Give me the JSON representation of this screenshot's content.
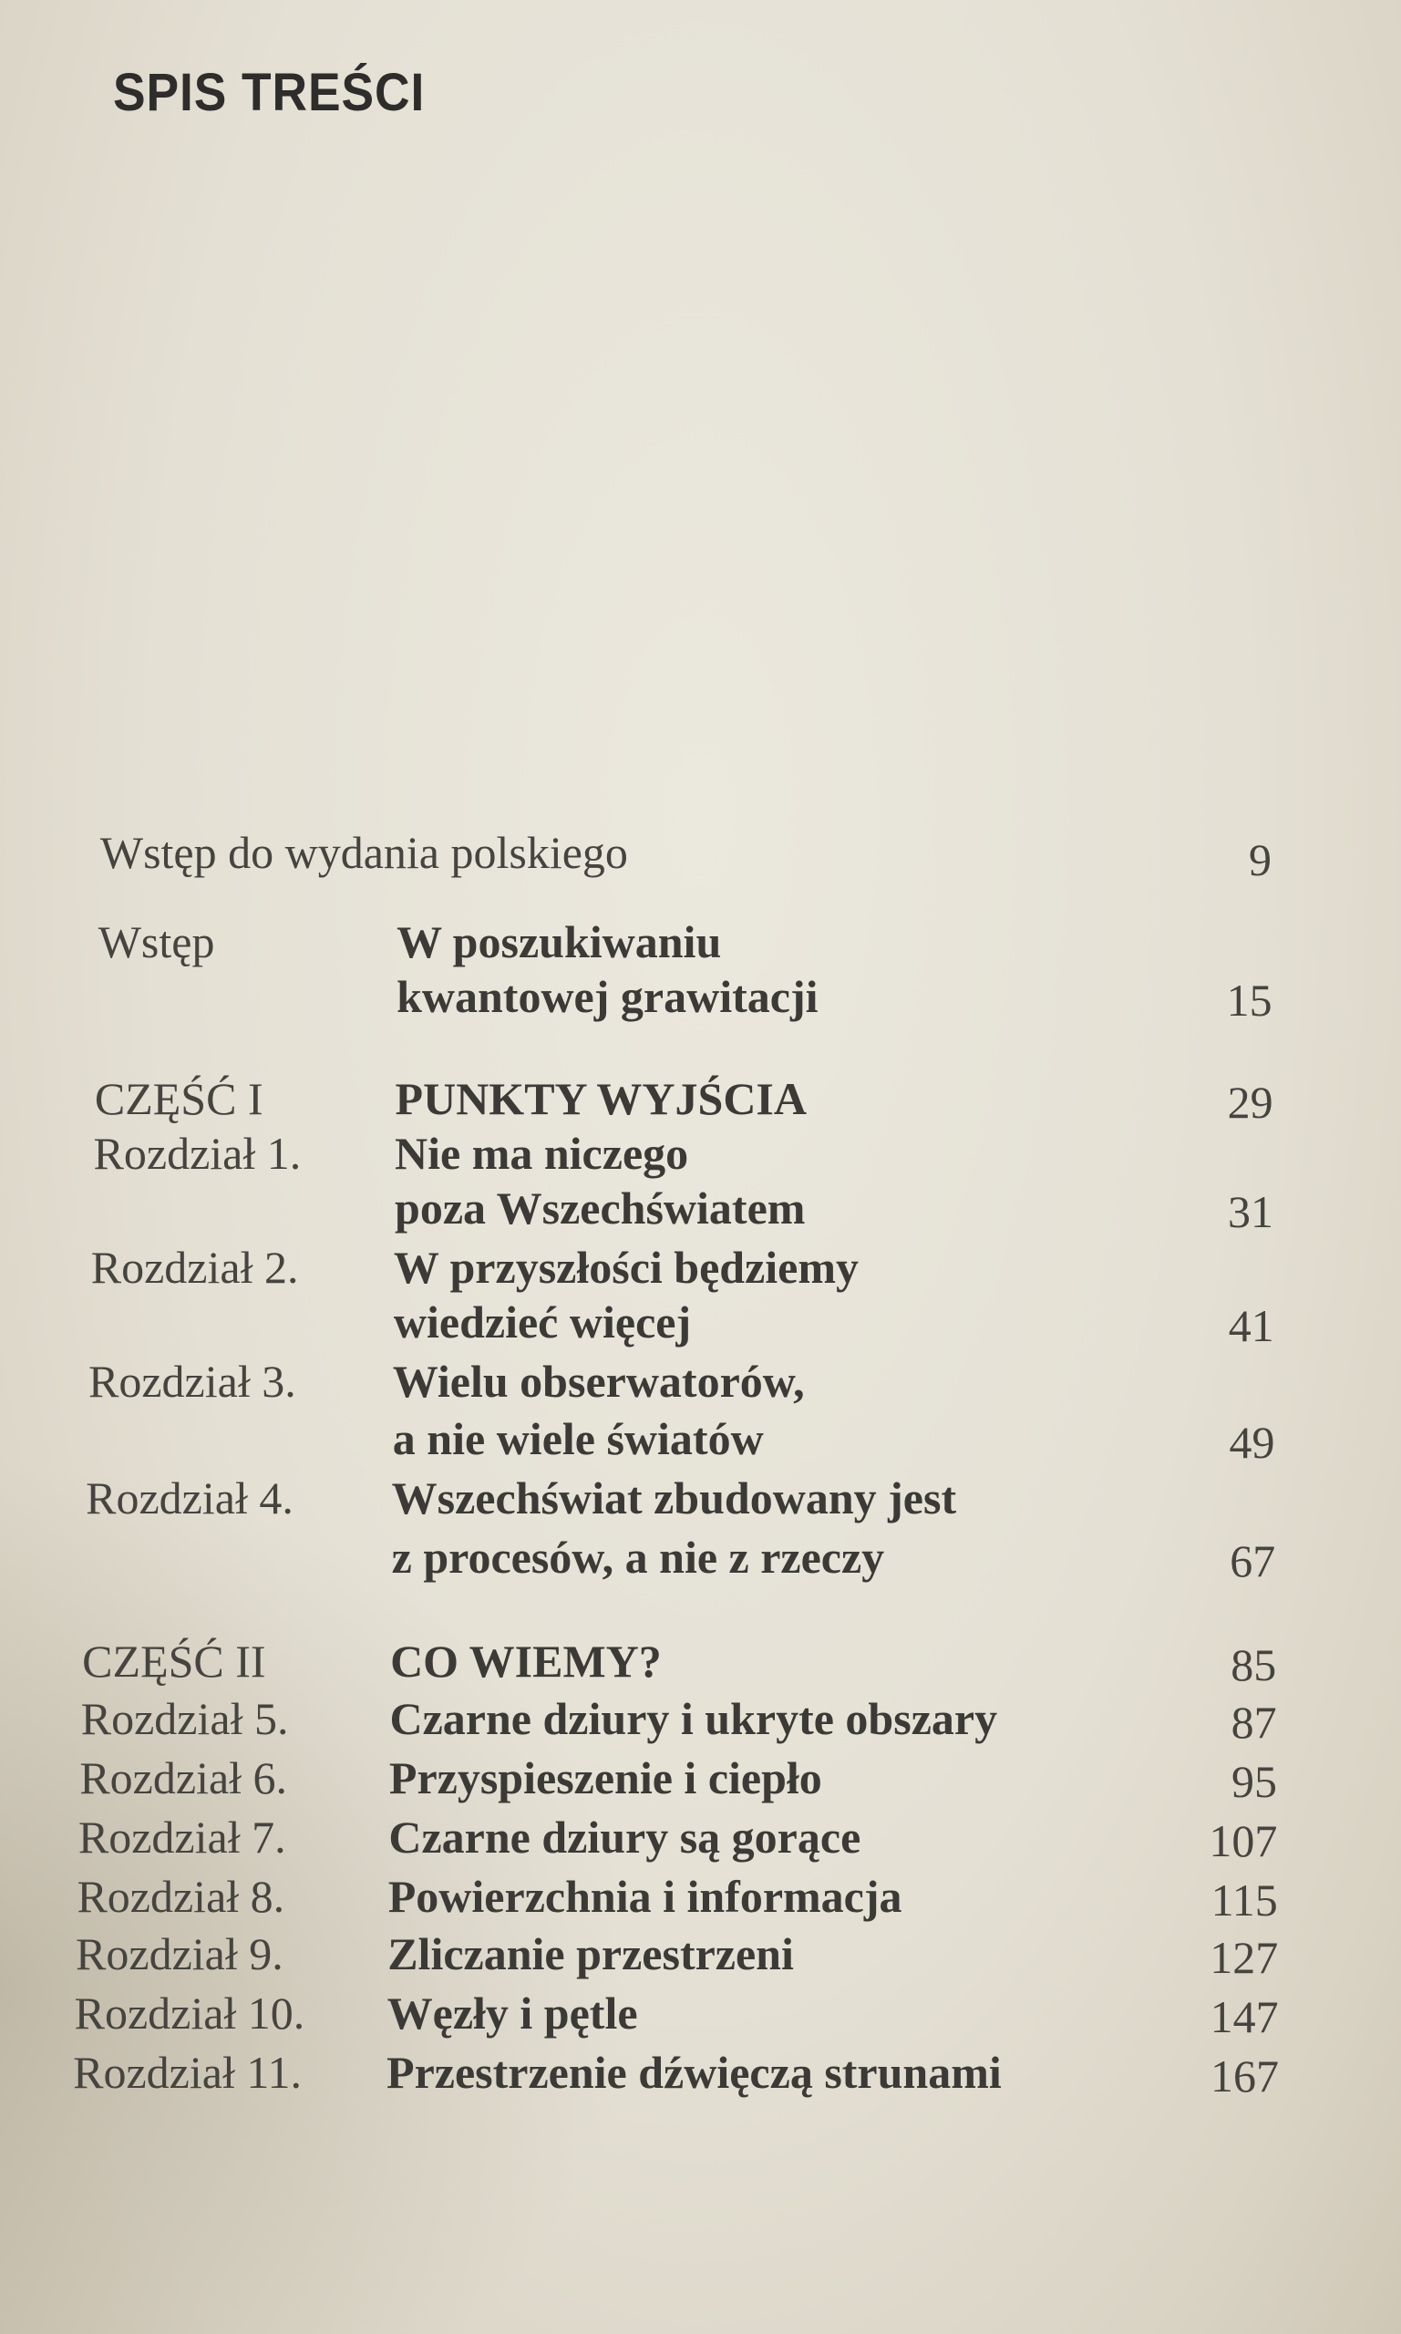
{
  "heading": "SPIS TREŚCI",
  "entries": [
    {
      "label": "Wstęp do wydania polskiego",
      "lines": [],
      "page": "9"
    },
    {
      "label": "Wstęp",
      "lines": [
        "W poszukiwaniu",
        "kwantowej grawitacji"
      ],
      "page": "15"
    },
    {
      "label": "CZĘŚĆ I",
      "lines": [
        "PUNKTY WYJŚCIA"
      ],
      "page": "29"
    },
    {
      "label": "Rozdział 1.",
      "lines": [
        "Nie ma niczego",
        "poza Wszechświatem"
      ],
      "page": "31"
    },
    {
      "label": "Rozdział 2.",
      "lines": [
        "W przyszłości będziemy",
        "wiedzieć więcej"
      ],
      "page": "41"
    },
    {
      "label": "Rozdział 3.",
      "lines": [
        "Wielu obserwatorów,",
        "a nie wiele światów"
      ],
      "page": "49"
    },
    {
      "label": "Rozdział 4.",
      "lines": [
        "Wszechświat zbudowany jest",
        "z procesów, a nie z rzeczy"
      ],
      "page": "67"
    },
    {
      "label": "CZĘŚĆ II",
      "lines": [
        "CO WIEMY?"
      ],
      "page": "85"
    },
    {
      "label": "Rozdział 5.",
      "lines": [
        "Czarne dziury i ukryte obszary"
      ],
      "page": "87"
    },
    {
      "label": "Rozdział 6.",
      "lines": [
        "Przyspieszenie i ciepło"
      ],
      "page": "95"
    },
    {
      "label": "Rozdział 7.",
      "lines": [
        "Czarne dziury są gorące"
      ],
      "page": "107"
    },
    {
      "label": "Rozdział 8.",
      "lines": [
        "Powierzchnia i informacja"
      ],
      "page": "115"
    },
    {
      "label": "Rozdział 9.",
      "lines": [
        "Zliczanie przestrzeni"
      ],
      "page": "127"
    },
    {
      "label": "Rozdział 10.",
      "lines": [
        "Węzły i pętle"
      ],
      "page": "147"
    },
    {
      "label": "Rozdział 11.",
      "lines": [
        "Przestrzenie dźwięczą strunami"
      ],
      "page": "167"
    }
  ]
}
